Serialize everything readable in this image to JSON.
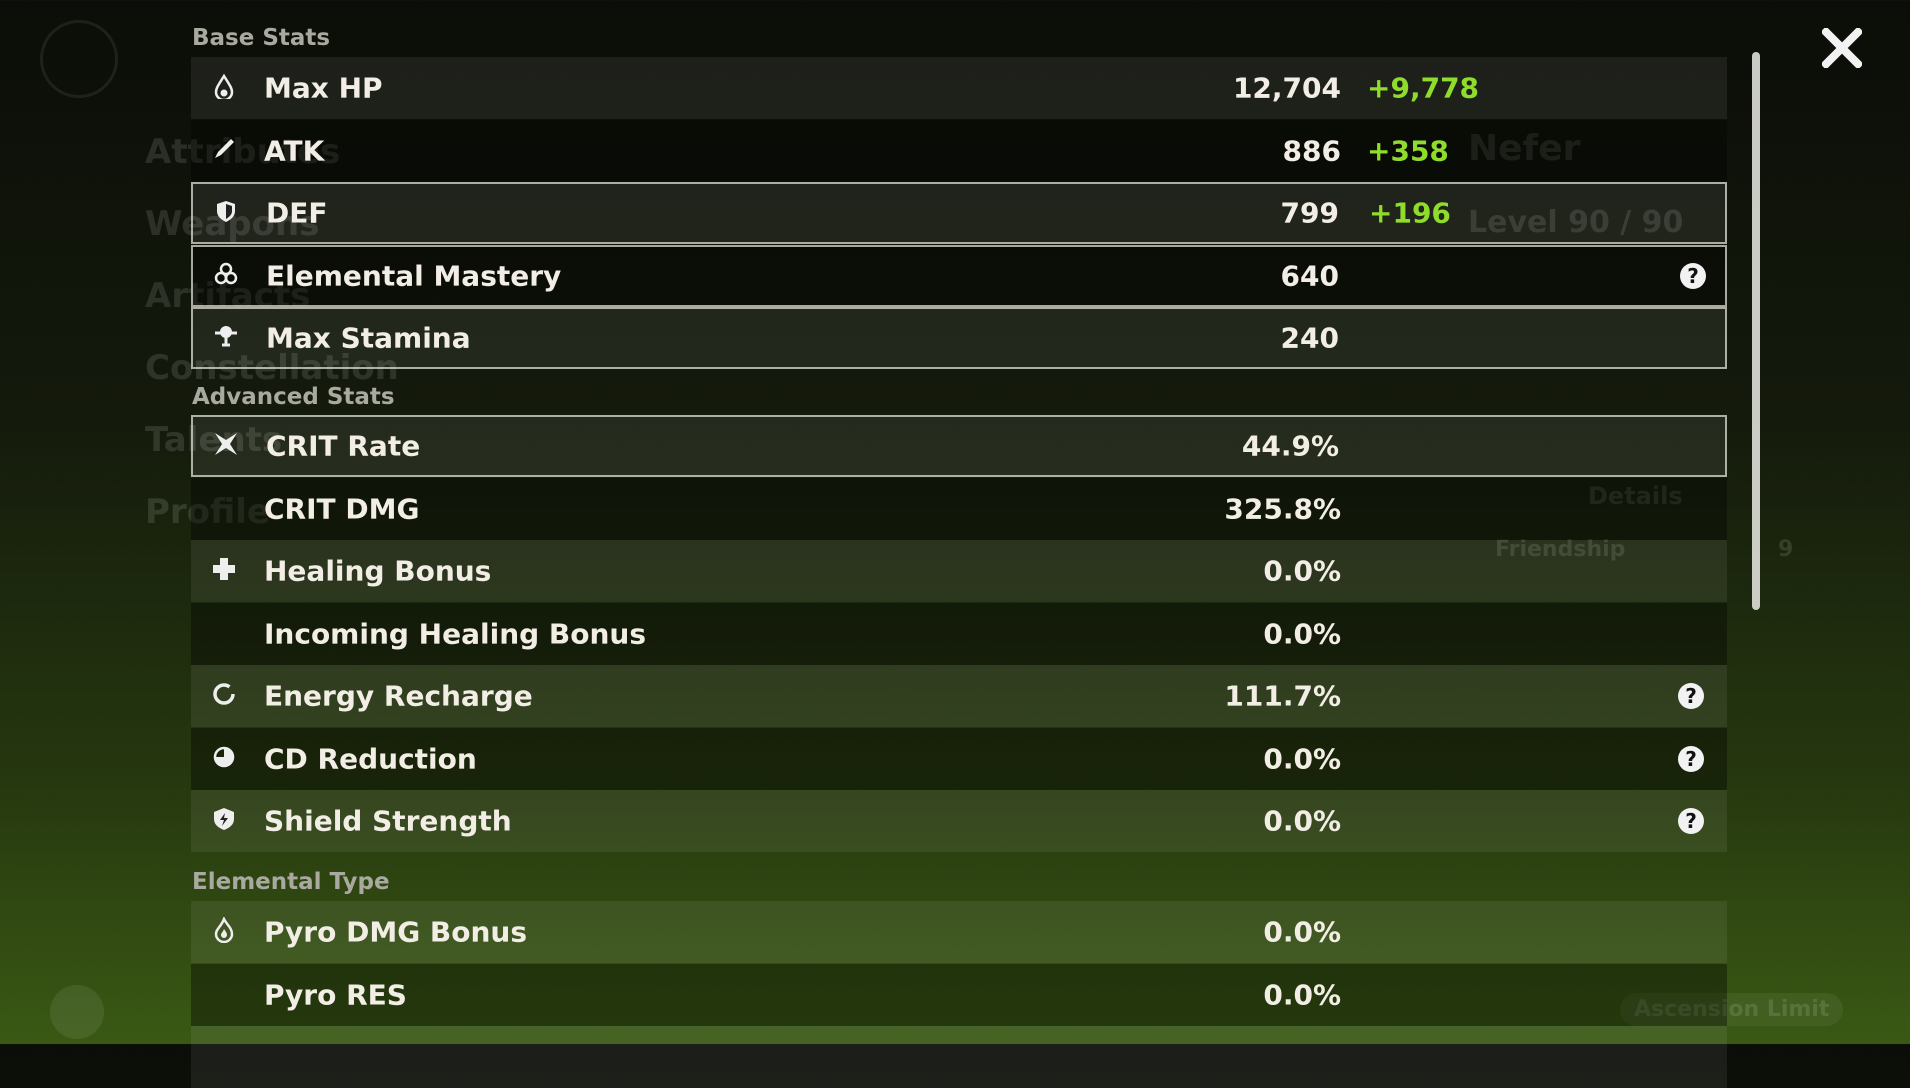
{
  "background": {
    "character": "Nefer",
    "level": "Level 90 / 90",
    "details": "Details",
    "friendship": "Friendship",
    "friendship_level": "9",
    "menu": [
      "Attributes",
      "Weapons",
      "Artifacts",
      "Constellation",
      "Talents",
      "Profile"
    ],
    "ascension": "Ascension Limit"
  },
  "sections": [
    {
      "title": "Base Stats",
      "rows": [
        {
          "name": "Max HP",
          "value": "12,704",
          "bonus": "+9,778"
        },
        {
          "name": "ATK",
          "value": "886",
          "bonus": "+358"
        },
        {
          "name": "DEF",
          "value": "799",
          "bonus": "+196"
        },
        {
          "name": "Elemental Mastery",
          "value": "640",
          "hint": "?"
        },
        {
          "name": "Max Stamina",
          "value": "240"
        }
      ]
    },
    {
      "title": "Advanced Stats",
      "rows": [
        {
          "name": "CRIT Rate",
          "value": "44.9%"
        },
        {
          "name": "CRIT DMG",
          "value": "325.8%"
        },
        {
          "name": "Healing Bonus",
          "value": "0.0%"
        },
        {
          "name": "Incoming Healing Bonus",
          "value": "0.0%"
        },
        {
          "name": "Energy Recharge",
          "value": "111.7%",
          "hint": "?"
        },
        {
          "name": "CD Reduction",
          "value": "0.0%",
          "hint": "?"
        },
        {
          "name": "Shield Strength",
          "value": "0.0%",
          "hint": "?"
        }
      ]
    },
    {
      "title": "Elemental Type",
      "rows": [
        {
          "name": "Pyro DMG Bonus",
          "value": "0.0%"
        },
        {
          "name": "Pyro RES",
          "value": "0.0%"
        }
      ]
    }
  ]
}
